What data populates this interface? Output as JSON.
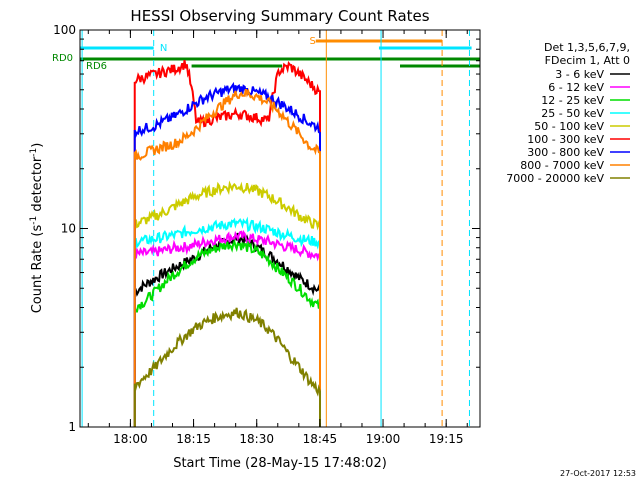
{
  "chart_data": {
    "type": "line",
    "title": "HESSI Observing Summary Count Rates",
    "xlabel": "Start Time (28-May-15 17:48:02)",
    "ylabel_main": "Count Rate (s",
    "ylabel_sup": "-1",
    "ylabel_mid": " detector",
    "ylabel_end": ")",
    "y_scale": "log",
    "ylim": [
      1,
      100
    ],
    "xlim_minutes": [
      0,
      95
    ],
    "xtick_labels": [
      "18:00",
      "18:15",
      "18:30",
      "18:45",
      "19:00",
      "19:15"
    ],
    "xtick_minutes": [
      11.97,
      26.97,
      41.97,
      56.97,
      71.97,
      86.97
    ],
    "ytick_labels": [
      "1",
      "10",
      "100"
    ],
    "ytick_values": [
      1,
      10,
      100
    ],
    "legend_placement": "right",
    "legend_header": [
      "Det 1,3,5,6,7,9,",
      "FDecim 1, Att 0"
    ],
    "timestamp": "27-Oct-2017 12:53",
    "flags": {
      "N": {
        "label": "N",
        "color": "#00e5ff",
        "segments": [
          [
            0,
            17.5
          ],
          [
            71,
            93
          ]
        ]
      },
      "S": {
        "label": "S",
        "color": "#ff8c00",
        "segments": [
          [
            56,
            86
          ]
        ]
      },
      "RD0": {
        "label": "RD0",
        "color": "#008800",
        "segments": [
          [
            0,
            95
          ]
        ]
      },
      "RD6": {
        "label": "RD6",
        "color": "#008800",
        "segments": [
          [
            0,
            26.5
          ],
          [
            26.5,
            48
          ],
          [
            76,
            95
          ]
        ]
      }
    },
    "vlines": [
      {
        "minute": 17.5,
        "color": "#00e5ff",
        "dash": true
      },
      {
        "minute": 0.5,
        "color": "#00e5ff",
        "dash": false
      },
      {
        "minute": 71.5,
        "color": "#00e5ff",
        "dash": false
      },
      {
        "minute": 92.5,
        "color": "#00e5ff",
        "dash": true
      },
      {
        "minute": 58.5,
        "color": "#ff8c00",
        "dash": false
      },
      {
        "minute": 86.0,
        "color": "#ff8c00",
        "dash": true
      }
    ],
    "data_start": 13,
    "data_end": 57,
    "series": [
      {
        "name": "3 - 6 keV",
        "color": "#000000",
        "values": [
          4.8,
          5.2,
          5.6,
          6.0,
          6.4,
          6.8,
          7.2,
          7.8,
          8.2,
          8.6,
          9.0,
          8.6,
          8.0,
          7.4,
          6.8,
          6.2,
          5.6,
          5.2,
          4.8
        ]
      },
      {
        "name": "6 - 12 keV",
        "color": "#ff00ff",
        "values": [
          7.4,
          7.5,
          7.6,
          7.8,
          8.0,
          8.1,
          8.3,
          8.6,
          8.8,
          9.0,
          9.2,
          9.0,
          8.8,
          8.6,
          8.3,
          8.0,
          7.8,
          7.5,
          7.3
        ]
      },
      {
        "name": "12 - 25 keV",
        "color": "#00dd00",
        "values": [
          4.0,
          4.3,
          4.8,
          5.4,
          6.0,
          6.6,
          7.2,
          7.6,
          8.0,
          8.3,
          8.4,
          8.0,
          7.6,
          7.0,
          6.2,
          5.6,
          5.0,
          4.4,
          4.0
        ]
      },
      {
        "name": "25 - 50 keV",
        "color": "#00ffff",
        "values": [
          8.6,
          8.7,
          8.9,
          9.1,
          9.3,
          9.6,
          9.9,
          10.1,
          10.3,
          10.5,
          10.6,
          10.4,
          10.2,
          9.9,
          9.5,
          9.2,
          8.9,
          8.7,
          8.5
        ]
      },
      {
        "name": "50 - 100 keV",
        "color": "#cccc00",
        "values": [
          10.5,
          11.0,
          11.5,
          12.2,
          13.0,
          13.8,
          14.6,
          15.2,
          15.8,
          16.2,
          16.4,
          16.0,
          15.4,
          14.6,
          13.6,
          12.6,
          11.6,
          10.8,
          10.2
        ]
      },
      {
        "name": "100 - 300 keV",
        "color": "#ff0000",
        "values": [
          56,
          58,
          60,
          62,
          64,
          68,
          34,
          35,
          36,
          37,
          38,
          37,
          36,
          35,
          62,
          66,
          60,
          54,
          48
        ]
      },
      {
        "name": "300 - 800 keV",
        "color": "#0000ff",
        "values": [
          31,
          32,
          33,
          35,
          37,
          40,
          43,
          46,
          48,
          50,
          51,
          50,
          48,
          46,
          43,
          40,
          37,
          34,
          32
        ]
      },
      {
        "name": "800 - 7000 keV",
        "color": "#ff8000",
        "values": [
          23,
          24,
          25,
          26,
          27,
          29,
          32,
          36,
          40,
          44,
          48,
          48,
          46,
          43,
          39,
          34,
          30,
          26,
          24
        ]
      },
      {
        "name": "7000 - 20000 keV",
        "color": "#808000",
        "values": [
          1.6,
          1.8,
          2.0,
          2.3,
          2.6,
          2.9,
          3.2,
          3.4,
          3.6,
          3.7,
          3.8,
          3.6,
          3.4,
          3.1,
          2.7,
          2.3,
          2.0,
          1.7,
          1.5
        ]
      }
    ]
  }
}
